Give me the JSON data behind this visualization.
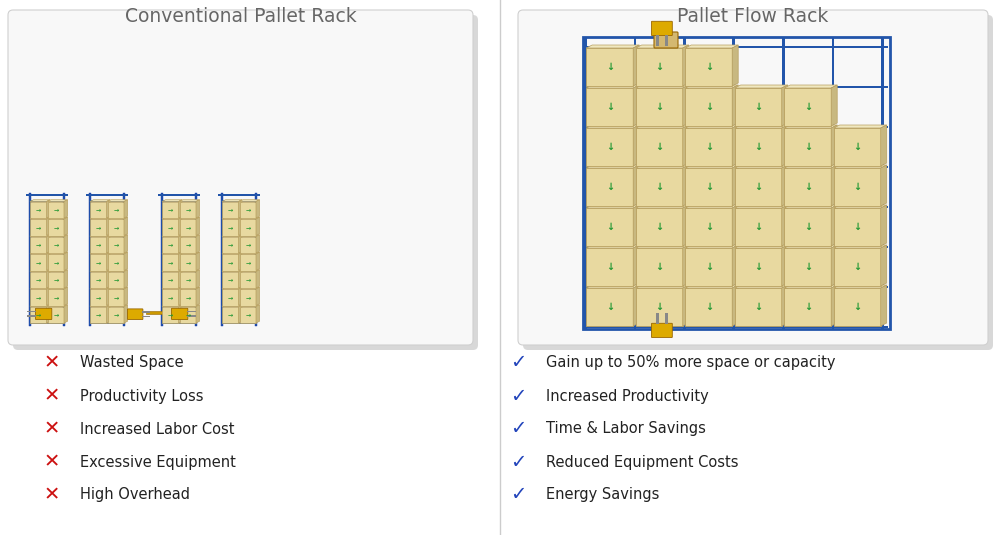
{
  "background_color": "#ffffff",
  "title_left": "Conventional Pallet Rack",
  "title_right": "Pallet Flow Rack",
  "title_color": "#666666",
  "title_fontsize": 13.5,
  "left_negatives": [
    "Wasted Space",
    "Productivity Loss",
    "Increased Labor Cost",
    "Excessive Equipment",
    "High Overhead"
  ],
  "right_positives": [
    "Gain up to 50% more space or capacity",
    "Increased Productivity",
    "Time & Labor Savings",
    "Reduced Equipment Costs",
    "Energy Savings"
  ],
  "x_color": "#cc1111",
  "check_color": "#2244bb",
  "bullet_fontsize": 10.5,
  "text_color": "#222222",
  "box_bg": "#f0f0f0",
  "box_bg_inner": "#f8f8f8",
  "box_edge": "#d0d0d0",
  "divider_color": "#cccccc",
  "box_color": "#e8d9a0",
  "box_edge_color": "#b8a060",
  "arrow_color": "#229933",
  "rack_color": "#2255aa",
  "forklift_color": "#cc9900",
  "forklift_body": "#ddaa00",
  "shadow_color": "#cccccc"
}
